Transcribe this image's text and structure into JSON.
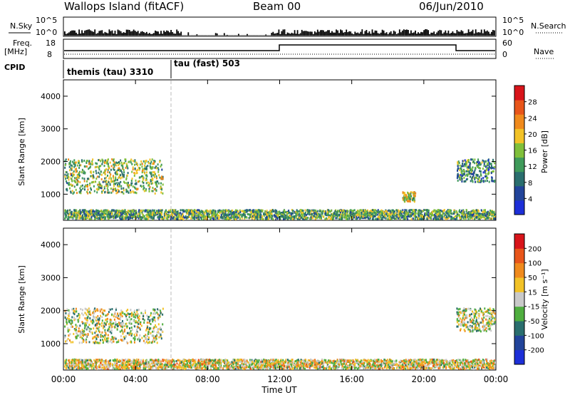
{
  "header": {
    "station": "Wallops Island (fitACF)",
    "beam": "Beam 00",
    "date": "06/Jun/2010"
  },
  "top_panels": {
    "nsky_label": "N.Sky",
    "nsky_ticks": [
      "10^5",
      "10^0"
    ],
    "nsearch_label": "N.Search",
    "nsearch_ticks": [
      "10^5",
      "10^0"
    ],
    "freq_label_1": "Freq.",
    "freq_label_2": "[MHz]",
    "freq_ticks": [
      "18",
      "8"
    ],
    "nave_label": "Nave",
    "nave_ticks": [
      "60",
      "0"
    ],
    "cpid_label": "CPID",
    "cpid_entries": [
      {
        "text": "themis (tau) 3310",
        "start_hour": 0
      },
      {
        "text": "tau (fast) 503",
        "start_hour": 6
      }
    ]
  },
  "colors": {
    "power_scale": [
      "#1d2fd8",
      "#22449a",
      "#2a6e6e",
      "#3f9a5a",
      "#7fbf3a",
      "#f2c227",
      "#f08a1c",
      "#e8551a",
      "#d8141a"
    ],
    "velocity_scale": [
      "#1d2fd8",
      "#22449a",
      "#2a6e6e",
      "#4fae3f",
      "#c9c9c9",
      "#f2c227",
      "#f08a1c",
      "#e8551a",
      "#d8141a"
    ]
  },
  "chart_data": [
    {
      "type": "heatmap",
      "panel": "power",
      "xlabel": "Time UT",
      "ylabel": "Slant Range [km]",
      "xlim": [
        0,
        24
      ],
      "ylim": [
        200,
        4500
      ],
      "x_ticks": [
        "00:00",
        "04:00",
        "08:00",
        "12:00",
        "16:00",
        "20:00",
        "00:00"
      ],
      "y_ticks": [
        "1000",
        "2000",
        "3000",
        "4000"
      ],
      "colorbar_label": "Power [dB]",
      "colorbar_ticks": [
        "28",
        "24",
        "20",
        "16",
        "12",
        "8",
        "4"
      ],
      "colorbar_range": [
        0,
        30
      ],
      "features": [
        {
          "name": "morning echo band",
          "t_start": 0.0,
          "t_end": 5.5,
          "range_start": 1050,
          "range_end": 2100,
          "value_typical": 14
        },
        {
          "name": "ground scatter near 400 km",
          "t_start": 0.0,
          "t_end": 24.0,
          "range_start": 250,
          "range_end": 550,
          "value_typical": 12
        },
        {
          "name": "evening echo band",
          "t_start": 21.8,
          "t_end": 24.0,
          "range_start": 1400,
          "range_end": 2100,
          "value_typical": 10
        },
        {
          "name": "echo patch",
          "t_start": 18.8,
          "t_end": 19.5,
          "range_start": 800,
          "range_end": 1100,
          "value_typical": 16
        }
      ]
    },
    {
      "type": "heatmap",
      "panel": "velocity",
      "xlabel": "Time UT",
      "ylabel": "Slant Range [km]",
      "xlim": [
        0,
        24
      ],
      "ylim": [
        200,
        4500
      ],
      "x_ticks": [
        "00:00",
        "04:00",
        "08:00",
        "12:00",
        "16:00",
        "20:00",
        "00:00"
      ],
      "y_ticks": [
        "1000",
        "2000",
        "3000",
        "4000"
      ],
      "colorbar_label": "Velocity [m s⁻¹]",
      "colorbar_ticks": [
        "200",
        "100",
        "50",
        "15",
        "-15",
        "-50",
        "-100",
        "-200"
      ],
      "colorbar_range": [
        -250,
        250
      ],
      "features": [
        {
          "name": "morning echo band",
          "t_start": 0.0,
          "t_end": 5.5,
          "range_start": 1050,
          "range_end": 2100,
          "value_typical": 0
        },
        {
          "name": "ground scatter near 400 km",
          "t_start": 0.0,
          "t_end": 24.0,
          "range_start": 250,
          "range_end": 550,
          "value_typical": 30
        },
        {
          "name": "evening echo band",
          "t_start": 21.8,
          "t_end": 24.0,
          "range_start": 1400,
          "range_end": 2100,
          "value_typical": 0
        }
      ]
    }
  ]
}
